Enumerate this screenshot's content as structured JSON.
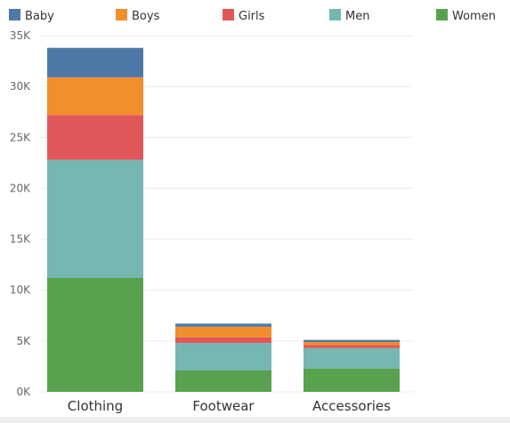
{
  "chart_data": {
    "type": "bar",
    "stacked": true,
    "categories": [
      "Clothing",
      "Footwear",
      "Accessories"
    ],
    "series": [
      {
        "name": "Women",
        "color": "#59a14f",
        "values": [
          11200,
          2100,
          2300
        ]
      },
      {
        "name": "Men",
        "color": "#76b7b2",
        "values": [
          11600,
          2700,
          2000
        ]
      },
      {
        "name": "Girls",
        "color": "#e15759",
        "values": [
          4400,
          550,
          300
        ]
      },
      {
        "name": "Boys",
        "color": "#f28e2b",
        "values": [
          3700,
          1050,
          300
        ]
      },
      {
        "name": "Baby",
        "color": "#4e79a7",
        "values": [
          2900,
          300,
          200
        ]
      }
    ],
    "legend": [
      "Baby",
      "Boys",
      "Girls",
      "Men",
      "Women"
    ],
    "legend_position": "top",
    "yticks": [
      0,
      5000,
      10000,
      15000,
      20000,
      25000,
      30000,
      35000
    ],
    "ytick_labels": [
      "0K",
      "5K",
      "10K",
      "15K",
      "20K",
      "25K",
      "30K",
      "35K"
    ],
    "ylim": [
      0,
      35000
    ],
    "grid": true,
    "title": "",
    "xlabel": "",
    "ylabel": ""
  }
}
